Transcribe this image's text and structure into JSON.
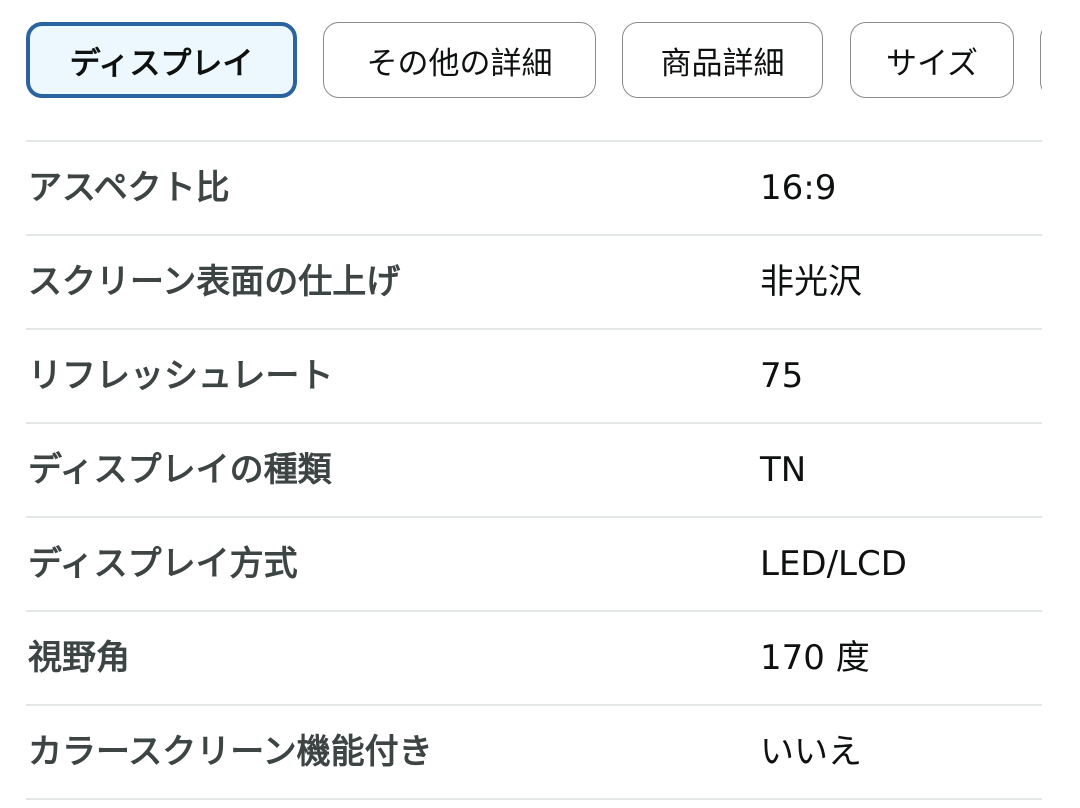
{
  "tabs": [
    {
      "label": "ディスプレイ",
      "active": true
    },
    {
      "label": "その他の詳細",
      "active": false
    },
    {
      "label": "商品詳細",
      "active": false
    },
    {
      "label": "サイズ",
      "active": false
    },
    {
      "label": "",
      "active": false
    }
  ],
  "accent_color": "#2a64a0",
  "rows": [
    {
      "label": "アスペクト比",
      "value": "16:9"
    },
    {
      "label": "スクリーン表面の仕上げ",
      "value": "非光沢"
    },
    {
      "label": "リフレッシュレート",
      "value": "75"
    },
    {
      "label": "ディスプレイの種類",
      "value": "TN"
    },
    {
      "label": "ディスプレイ方式",
      "value": "LED/LCD"
    },
    {
      "label": "視野角",
      "value": "170 度"
    },
    {
      "label": "カラースクリーン機能付き",
      "value": "いいえ"
    }
  ]
}
